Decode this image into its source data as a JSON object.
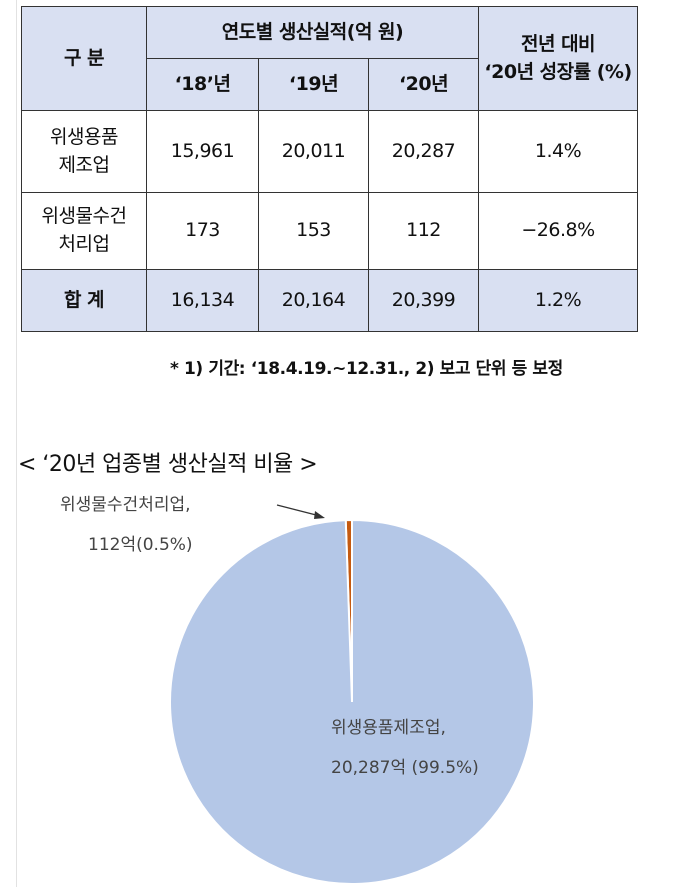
{
  "table": {
    "header": {
      "category": "구 분",
      "year_group": "연도별 생산실적(억 원)",
      "years": [
        "‘18’년",
        "‘19년",
        "‘20년"
      ],
      "growth_line1": "전년 대비",
      "growth_line2": "‘20년 성장률 (%)"
    },
    "rows": [
      {
        "name_line1": "위생용품",
        "name_line2": "제조업",
        "y18": "15,961",
        "y19": "20,011",
        "y20": "20,287",
        "growth": "1.4%"
      },
      {
        "name_line1": "위생물수건",
        "name_line2": "처리업",
        "y18": "173",
        "y19": "153",
        "y20": "112",
        "growth": "−26.8%"
      }
    ],
    "total": {
      "name": "합 계",
      "y18": "16,134",
      "y19": "20,164",
      "y20": "20,399",
      "growth": "1.2%"
    }
  },
  "note": "* 1) 기간: ‘18.4.19.~12.31., 2) 보고 단위 등 보정",
  "pie_title": "< ‘20년 업종별 생산실적 비율 >",
  "chart_data": {
    "type": "pie",
    "title": "‘20년 업종별 생산실적 비율",
    "series": [
      {
        "name": "위생용품제조업",
        "value": 20287,
        "percent": 99.5,
        "color": "#b4c7e7",
        "label_line1": "위생용품제조업,",
        "label_line2": "20,287억 (99.5%)"
      },
      {
        "name": "위생물수건처리업",
        "value": 112,
        "percent": 0.5,
        "color": "#c55a11",
        "label_line1": "위생물수건처리업,",
        "label_line2": "112억(0.5%)"
      }
    ]
  }
}
